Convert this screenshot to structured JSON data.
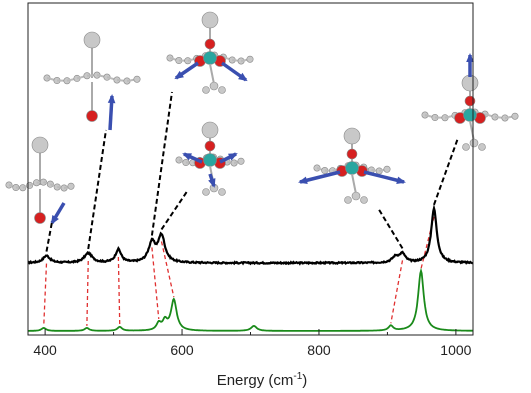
{
  "chart_data": {
    "type": "line",
    "xlabel": "Energy (cm",
    "xlabel_sup": "-1",
    "xlabel_tail": ")",
    "xlim": [
      375,
      1025
    ],
    "x_ticks": [
      400,
      600,
      800,
      1000
    ],
    "y_ticks_shown": false,
    "grid": false,
    "series": [
      {
        "role": "experimental",
        "color": "#000000",
        "baseline": 0.55,
        "peaks": [
          {
            "x": 402,
            "height": 0.06,
            "width": 6
          },
          {
            "x": 463,
            "height": 0.08,
            "width": 7
          },
          {
            "x": 507,
            "height": 0.11,
            "width": 5
          },
          {
            "x": 556,
            "height": 0.16,
            "width": 6
          },
          {
            "x": 570,
            "height": 0.22,
            "width": 6
          },
          {
            "x": 912,
            "height": 0.05,
            "width": 6
          },
          {
            "x": 922,
            "height": 0.07,
            "width": 5
          },
          {
            "x": 968,
            "height": 0.45,
            "width": 5
          }
        ]
      },
      {
        "role": "calculated",
        "color": "#1a8a1a",
        "baseline": 0.0,
        "peaks": [
          {
            "x": 398,
            "height": 0.03,
            "width": 4
          },
          {
            "x": 461,
            "height": 0.03,
            "width": 4
          },
          {
            "x": 509,
            "height": 0.04,
            "width": 4
          },
          {
            "x": 566,
            "height": 0.07,
            "width": 4
          },
          {
            "x": 575,
            "height": 0.09,
            "width": 4
          },
          {
            "x": 588,
            "height": 0.31,
            "width": 5
          },
          {
            "x": 705,
            "height": 0.05,
            "width": 5
          },
          {
            "x": 905,
            "height": 0.05,
            "width": 4
          },
          {
            "x": 949,
            "height": 0.6,
            "width": 5
          }
        ]
      }
    ],
    "correspondences": [
      {
        "exp": 402,
        "calc": 398
      },
      {
        "exp": 463,
        "calc": 461
      },
      {
        "exp": 507,
        "calc": 509
      },
      {
        "exp": 556,
        "calc": 566
      },
      {
        "exp": 570,
        "calc": 588
      },
      {
        "exp": 922,
        "calc": 905
      },
      {
        "exp": 968,
        "calc": 949
      }
    ],
    "colors": {
      "calc_link": "#e03030",
      "mode_arrow": "#3a4fb0",
      "atom_heavy": "#2aa6a0",
      "atom_oxygen": "#d62020",
      "atom_h": "#c8c8c8"
    }
  }
}
